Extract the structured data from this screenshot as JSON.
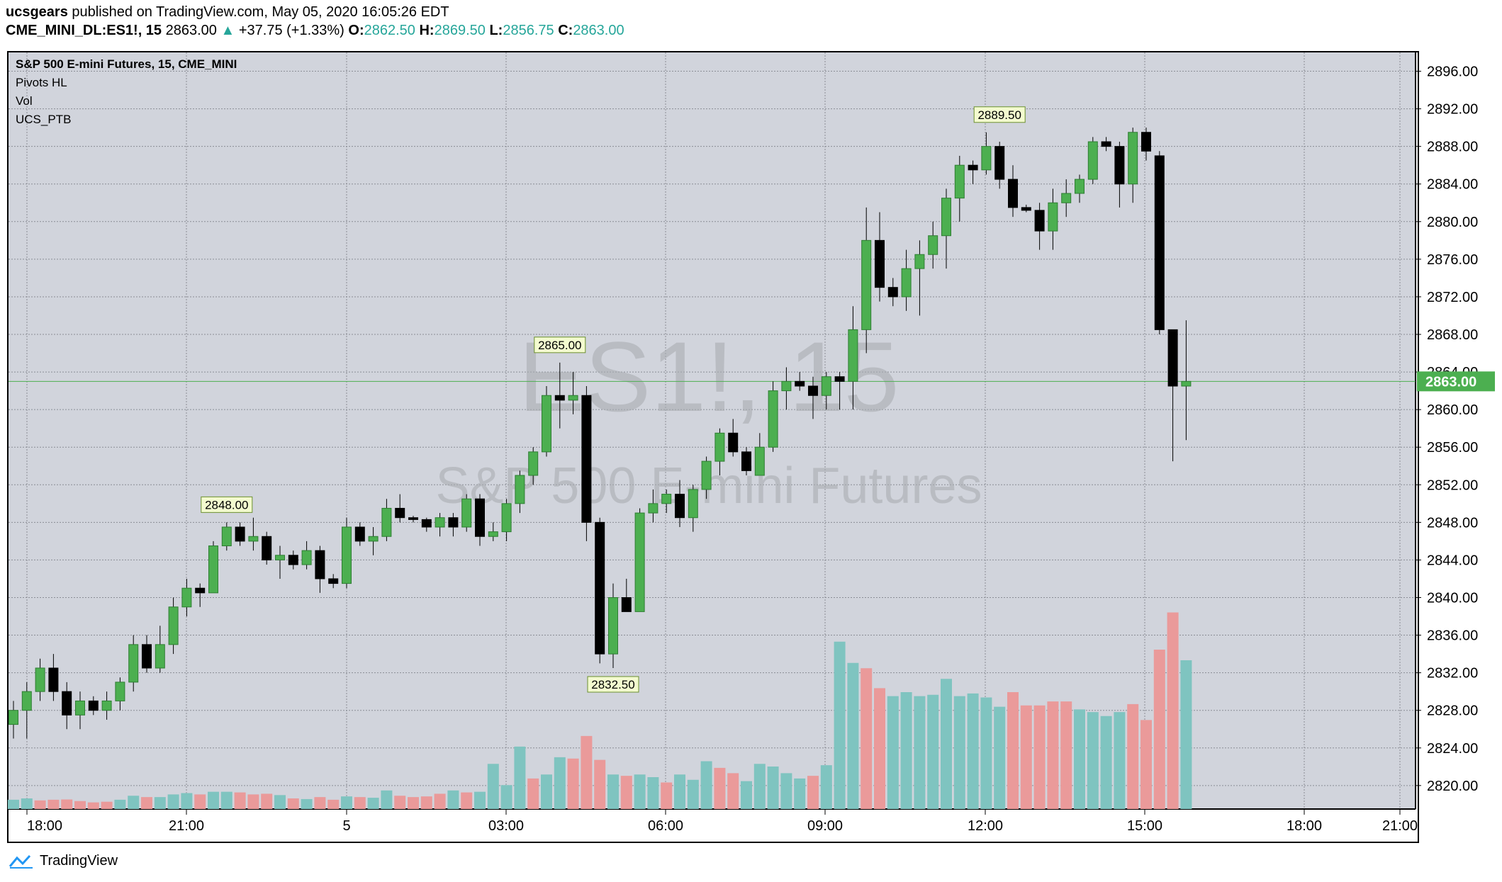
{
  "header": {
    "publisher": "ucsgears",
    "published_text": "published on TradingView.com, May 05, 2020 16:05:26 EDT",
    "symbol": "CME_MINI_DL:ES1!, 15",
    "last": "2863.00",
    "change_arrow": "▲",
    "change": "+37.75 (+1.33%)",
    "o_label": "O:",
    "o_value": "2862.50",
    "h_label": "H:",
    "h_value": "2869.50",
    "l_label": "L:",
    "l_value": "2856.75",
    "c_label": "C:",
    "c_value": "2863.00"
  },
  "legend": {
    "title": "S&P 500 E-mini Futures, 15, CME_MINI",
    "items": [
      "Pivots HL",
      "Vol",
      "UCS_PTB"
    ]
  },
  "watermark": {
    "symbol": "ES1!, 15",
    "name": "S&P 500 E-mini Futures"
  },
  "footer": {
    "brand": "TradingView"
  },
  "colors": {
    "up_body": "#4caf50",
    "down_body": "#000000",
    "vol_up": "#7fc4c0",
    "vol_down": "#ea9a9a",
    "price_line": "#4caf50",
    "pivot_label_bg": "#f3fbcf",
    "background": "#d1d4dc"
  },
  "chart_data": {
    "type": "candlestick",
    "title": "S&P 500 E-mini Futures, 15, CME_MINI",
    "y_ticks": [
      2820,
      2824,
      2828,
      2832,
      2836,
      2840,
      2844,
      2848,
      2852,
      2856,
      2860,
      2864,
      2868,
      2872,
      2876,
      2880,
      2884,
      2888,
      2892,
      2896
    ],
    "ylim": [
      2817.5,
      2898
    ],
    "x_tick_labels": [
      "18:00",
      "21:00",
      "5",
      "03:00",
      "06:00",
      "09:00",
      "12:00",
      "15:00",
      "18:00",
      "21:00"
    ],
    "last_price": "2863.00",
    "last_price_value": 2863.0,
    "grid": true,
    "pivots": [
      {
        "label": "2848.00",
        "bar": 16,
        "type": "high",
        "value": 2848.0
      },
      {
        "label": "2865.00",
        "bar": 41,
        "type": "high",
        "value": 2865.0
      },
      {
        "label": "2832.50",
        "bar": 45,
        "type": "low",
        "value": 2832.5
      },
      {
        "label": "2889.50",
        "bar": 74,
        "type": "high",
        "value": 2889.5
      }
    ],
    "candles": [
      [
        2826.5,
        2829.0,
        2825.0,
        2828.0
      ],
      [
        2828.0,
        2831.0,
        2825.0,
        2830.0
      ],
      [
        2830.0,
        2833.5,
        2829.0,
        2832.5
      ],
      [
        2832.5,
        2834.0,
        2829.0,
        2830.0
      ],
      [
        2830.0,
        2831.0,
        2826.0,
        2827.5
      ],
      [
        2827.5,
        2830.0,
        2826.0,
        2829.0
      ],
      [
        2829.0,
        2829.5,
        2827.5,
        2828.0
      ],
      [
        2828.0,
        2830.0,
        2827.0,
        2829.0
      ],
      [
        2829.0,
        2831.5,
        2828.0,
        2831.0
      ],
      [
        2831.0,
        2836.0,
        2830.0,
        2835.0
      ],
      [
        2835.0,
        2836.0,
        2832.0,
        2832.5
      ],
      [
        2832.5,
        2837.0,
        2832.0,
        2835.0
      ],
      [
        2835.0,
        2840.0,
        2834.0,
        2839.0
      ],
      [
        2839.0,
        2842.0,
        2838.0,
        2841.0
      ],
      [
        2841.0,
        2841.5,
        2839.0,
        2840.5
      ],
      [
        2840.5,
        2846.0,
        2840.5,
        2845.5
      ],
      [
        2845.5,
        2848.0,
        2845.0,
        2847.5
      ],
      [
        2847.5,
        2848.0,
        2845.5,
        2846.0
      ],
      [
        2846.0,
        2848.5,
        2845.0,
        2846.5
      ],
      [
        2846.5,
        2847.0,
        2843.5,
        2844.0
      ],
      [
        2844.0,
        2845.5,
        2842.0,
        2844.5
      ],
      [
        2844.5,
        2845.0,
        2843.0,
        2843.5
      ],
      [
        2843.5,
        2846.0,
        2843.0,
        2845.0
      ],
      [
        2845.0,
        2845.5,
        2840.5,
        2842.0
      ],
      [
        2842.0,
        2842.5,
        2841.0,
        2841.5
      ],
      [
        2841.5,
        2848.5,
        2841.0,
        2847.5
      ],
      [
        2847.5,
        2848.0,
        2845.5,
        2846.0
      ],
      [
        2846.0,
        2847.5,
        2844.5,
        2846.5
      ],
      [
        2846.5,
        2850.5,
        2846.0,
        2849.5
      ],
      [
        2849.5,
        2851.0,
        2848.0,
        2848.5
      ],
      [
        2848.5,
        2848.7,
        2848.0,
        2848.3
      ],
      [
        2848.3,
        2848.5,
        2847.0,
        2847.5
      ],
      [
        2847.5,
        2849.0,
        2846.5,
        2848.5
      ],
      [
        2848.5,
        2849.0,
        2846.5,
        2847.5
      ],
      [
        2847.5,
        2851.0,
        2847.0,
        2850.5
      ],
      [
        2850.5,
        2851.0,
        2845.5,
        2846.5
      ],
      [
        2846.5,
        2848.0,
        2846.0,
        2847.0
      ],
      [
        2847.0,
        2850.5,
        2846.0,
        2850.0
      ],
      [
        2850.0,
        2853.5,
        2849.0,
        2853.0
      ],
      [
        2853.0,
        2856.0,
        2852.0,
        2855.5
      ],
      [
        2855.5,
        2862.5,
        2855.0,
        2861.5
      ],
      [
        2861.5,
        2865.0,
        2858.0,
        2861.0
      ],
      [
        2861.0,
        2864.0,
        2859.5,
        2861.5
      ],
      [
        2861.5,
        2862.5,
        2846.0,
        2848.0
      ],
      [
        2848.0,
        2848.5,
        2833.0,
        2834.0
      ],
      [
        2834.0,
        2841.5,
        2832.5,
        2840.0
      ],
      [
        2840.0,
        2842.0,
        2839.0,
        2838.5
      ],
      [
        2838.5,
        2849.5,
        2838.5,
        2849.0
      ],
      [
        2849.0,
        2851.5,
        2848.0,
        2850.0
      ],
      [
        2850.0,
        2851.5,
        2849.0,
        2851.0
      ],
      [
        2851.0,
        2852.5,
        2847.5,
        2848.5
      ],
      [
        2848.5,
        2852.0,
        2847.0,
        2851.5
      ],
      [
        2851.5,
        2855.0,
        2850.5,
        2854.5
      ],
      [
        2854.5,
        2858.0,
        2853.0,
        2857.5
      ],
      [
        2857.5,
        2859.0,
        2855.0,
        2855.5
      ],
      [
        2855.5,
        2856.0,
        2853.0,
        2853.5
      ],
      [
        2853.0,
        2857.5,
        2853.0,
        2856.0
      ],
      [
        2856.0,
        2863.0,
        2855.5,
        2862.0
      ],
      [
        2862.0,
        2864.5,
        2860.0,
        2863.0
      ],
      [
        2863.0,
        2864.0,
        2862.0,
        2862.5
      ],
      [
        2862.5,
        2863.5,
        2859.0,
        2861.5
      ],
      [
        2861.5,
        2864.0,
        2860.0,
        2863.5
      ],
      [
        2863.5,
        2864.0,
        2860.0,
        2863.0
      ],
      [
        2863.0,
        2871.0,
        2860.0,
        2868.5
      ],
      [
        2868.5,
        2881.5,
        2866.0,
        2878.0
      ],
      [
        2878.0,
        2881.0,
        2871.5,
        2873.0
      ],
      [
        2873.0,
        2874.0,
        2871.0,
        2872.0
      ],
      [
        2872.0,
        2877.0,
        2870.5,
        2875.0
      ],
      [
        2875.0,
        2878.0,
        2870.0,
        2876.5
      ],
      [
        2876.5,
        2880.0,
        2875.0,
        2878.5
      ],
      [
        2878.5,
        2883.5,
        2875.0,
        2882.5
      ],
      [
        2882.5,
        2887.0,
        2880.0,
        2886.0
      ],
      [
        2886.0,
        2886.5,
        2884.0,
        2885.5
      ],
      [
        2885.5,
        2889.5,
        2885.0,
        2888.0
      ],
      [
        2888.0,
        2888.5,
        2883.5,
        2884.5
      ],
      [
        2884.5,
        2886.0,
        2880.5,
        2881.5
      ],
      [
        2881.5,
        2881.8,
        2881.0,
        2881.2
      ],
      [
        2881.2,
        2882.0,
        2877.0,
        2879.0
      ],
      [
        2879.0,
        2883.5,
        2877.0,
        2882.0
      ],
      [
        2882.0,
        2884.5,
        2880.5,
        2883.0
      ],
      [
        2883.0,
        2885.0,
        2882.0,
        2884.5
      ],
      [
        2884.5,
        2889.0,
        2884.0,
        2888.5
      ],
      [
        2888.5,
        2889.0,
        2887.5,
        2888.0
      ],
      [
        2888.0,
        2888.5,
        2881.5,
        2884.0
      ],
      [
        2884.0,
        2890.0,
        2882.0,
        2889.5
      ],
      [
        2889.5,
        2890.0,
        2886.5,
        2887.5
      ],
      [
        2887.0,
        2887.5,
        2868.0,
        2868.5
      ],
      [
        2868.5,
        2868.5,
        2854.5,
        2862.5
      ],
      [
        2862.5,
        2869.5,
        2856.75,
        2863.0
      ]
    ],
    "volume_y_max": 16000,
    "volume": [
      [
        700,
        1
      ],
      [
        800,
        1
      ],
      [
        650,
        0
      ],
      [
        700,
        0
      ],
      [
        720,
        0
      ],
      [
        600,
        0
      ],
      [
        500,
        0
      ],
      [
        550,
        0
      ],
      [
        700,
        1
      ],
      [
        1000,
        1
      ],
      [
        900,
        0
      ],
      [
        900,
        1
      ],
      [
        1100,
        1
      ],
      [
        1200,
        1
      ],
      [
        1100,
        0
      ],
      [
        1300,
        1
      ],
      [
        1300,
        1
      ],
      [
        1250,
        0
      ],
      [
        1100,
        0
      ],
      [
        1150,
        0
      ],
      [
        1050,
        1
      ],
      [
        800,
        0
      ],
      [
        750,
        1
      ],
      [
        900,
        0
      ],
      [
        700,
        0
      ],
      [
        950,
        1
      ],
      [
        900,
        0
      ],
      [
        850,
        1
      ],
      [
        1400,
        1
      ],
      [
        1000,
        0
      ],
      [
        900,
        0
      ],
      [
        950,
        0
      ],
      [
        1150,
        0
      ],
      [
        1400,
        1
      ],
      [
        1250,
        0
      ],
      [
        1300,
        1
      ],
      [
        3400,
        1
      ],
      [
        1800,
        1
      ],
      [
        4700,
        1
      ],
      [
        2300,
        0
      ],
      [
        2600,
        1
      ],
      [
        3900,
        1
      ],
      [
        3800,
        0
      ],
      [
        5500,
        0
      ],
      [
        3700,
        0
      ],
      [
        2600,
        1
      ],
      [
        2500,
        0
      ],
      [
        2600,
        1
      ],
      [
        2400,
        1
      ],
      [
        2000,
        0
      ],
      [
        2600,
        1
      ],
      [
        2200,
        1
      ],
      [
        3600,
        1
      ],
      [
        3100,
        0
      ],
      [
        2700,
        0
      ],
      [
        2100,
        1
      ],
      [
        3400,
        1
      ],
      [
        3200,
        1
      ],
      [
        2700,
        1
      ],
      [
        2300,
        1
      ],
      [
        2500,
        0
      ],
      [
        3300,
        1
      ],
      [
        12600,
        1
      ],
      [
        11000,
        1
      ],
      [
        10600,
        0
      ],
      [
        9100,
        0
      ],
      [
        8500,
        1
      ],
      [
        8800,
        1
      ],
      [
        8500,
        1
      ],
      [
        8600,
        1
      ],
      [
        9800,
        1
      ],
      [
        8500,
        1
      ],
      [
        8700,
        1
      ],
      [
        8400,
        1
      ],
      [
        7700,
        1
      ],
      [
        8800,
        0
      ],
      [
        7800,
        0
      ],
      [
        7800,
        0
      ],
      [
        8100,
        0
      ],
      [
        8100,
        0
      ],
      [
        7500,
        1
      ],
      [
        7300,
        1
      ],
      [
        7000,
        1
      ],
      [
        7300,
        1
      ],
      [
        7900,
        0
      ],
      [
        6700,
        0
      ],
      [
        12000,
        0
      ],
      [
        14800,
        0
      ],
      [
        11200,
        1
      ]
    ]
  }
}
